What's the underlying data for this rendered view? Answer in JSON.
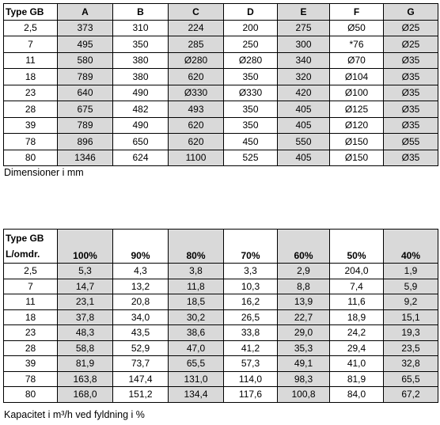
{
  "tables": [
    {
      "header": [
        "Type GB",
        "A",
        "B",
        "C",
        "D",
        "E",
        "F",
        "G"
      ],
      "rows": [
        [
          "2,5",
          "373",
          "310",
          "224",
          "200",
          "275",
          "Ø50",
          "Ø25"
        ],
        [
          "7",
          "495",
          "350",
          "285",
          "250",
          "300",
          "*76",
          "Ø25"
        ],
        [
          "11",
          "580",
          "380",
          "Ø280",
          "Ø280",
          "340",
          "Ø70",
          "Ø35"
        ],
        [
          "18",
          "789",
          "380",
          "620",
          "350",
          "320",
          "Ø104",
          "Ø35"
        ],
        [
          "23",
          "640",
          "490",
          "Ø330",
          "Ø330",
          "420",
          "Ø100",
          "Ø35"
        ],
        [
          "28",
          "675",
          "482",
          "493",
          "350",
          "405",
          "Ø125",
          "Ø35"
        ],
        [
          "39",
          "789",
          "490",
          "620",
          "350",
          "405",
          "Ø120",
          "Ø35"
        ],
        [
          "78",
          "896",
          "650",
          "620",
          "450",
          "550",
          "Ø150",
          "Ø55"
        ],
        [
          "80",
          "1346",
          "624",
          "1100",
          "525",
          "405",
          "Ø150",
          "Ø35"
        ]
      ],
      "caption": "Dimensioner i mm"
    },
    {
      "header": [
        [
          "Type GB",
          "L/omdr."
        ],
        "100%",
        "90%",
        "80%",
        "70%",
        "60%",
        "50%",
        "40%"
      ],
      "rows": [
        [
          "2,5",
          "5,3",
          "4,3",
          "3,8",
          "3,3",
          "2,9",
          "204,0",
          "1,9"
        ],
        [
          "7",
          "14,7",
          "13,2",
          "11,8",
          "10,3",
          "8,8",
          "7,4",
          "5,9"
        ],
        [
          "11",
          "23,1",
          "20,8",
          "18,5",
          "16,2",
          "13,9",
          "11,6",
          "9,2"
        ],
        [
          "18",
          "37,8",
          "34,0",
          "30,2",
          "26,5",
          "22,7",
          "18,9",
          "15,1"
        ],
        [
          "23",
          "48,3",
          "43,5",
          "38,6",
          "33,8",
          "29,0",
          "24,2",
          "19,3"
        ],
        [
          "28",
          "58,8",
          "52,9",
          "47,0",
          "41,2",
          "35,3",
          "29,4",
          "23,5"
        ],
        [
          "39",
          "81,9",
          "73,7",
          "65,5",
          "57,3",
          "49,1",
          "41,0",
          "32,8"
        ],
        [
          "78",
          "163,8",
          "147,4",
          "131,0",
          "114,0",
          "98,3",
          "81,9",
          "65,5"
        ],
        [
          "80",
          "168,0",
          "151,2",
          "134,4",
          "117,6",
          "100,8",
          "84,0",
          "67,2"
        ]
      ],
      "caption": "Kapacitet i m³/h ved fyldning i %"
    }
  ]
}
